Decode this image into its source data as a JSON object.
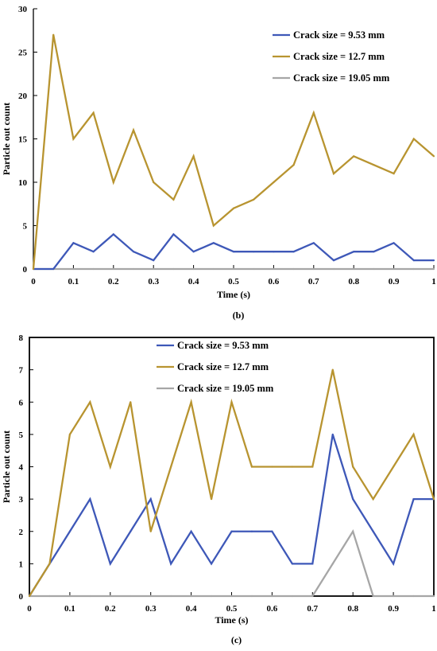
{
  "chart_data": [
    {
      "type": "line",
      "title": "",
      "caption": "(b)",
      "xlabel": "Time (s)",
      "ylabel": "Particle out count",
      "xlim": [
        0,
        1
      ],
      "ylim": [
        0,
        30
      ],
      "x_ticks": [
        0,
        0.1,
        0.2,
        0.3,
        0.4,
        0.5,
        0.6,
        0.7,
        0.8,
        0.9,
        1
      ],
      "x_tick_labels": [
        "0",
        "0.1",
        "0.2",
        "0.3",
        "0.4",
        "0.5",
        "0.6",
        "0.7",
        "0.8",
        "0.9",
        "1"
      ],
      "y_ticks": [
        0,
        5,
        10,
        15,
        20,
        25,
        30
      ],
      "y_tick_labels": [
        "0",
        "5",
        "10",
        "15",
        "20",
        "25",
        "30"
      ],
      "grid": false,
      "legend_position": "top-right",
      "x": [
        0,
        0.05,
        0.1,
        0.15,
        0.2,
        0.25,
        0.3,
        0.35,
        0.4,
        0.45,
        0.5,
        0.55,
        0.6,
        0.65,
        0.7,
        0.75,
        0.8,
        0.85,
        0.9,
        0.95,
        1
      ],
      "series": [
        {
          "name": "Crack size = 9.53 mm",
          "color": "#3e58b8",
          "values": [
            0,
            0,
            3,
            2,
            4,
            2,
            1,
            4,
            2,
            3,
            2,
            2,
            2,
            2,
            3,
            1,
            2,
            2,
            3,
            1,
            1
          ]
        },
        {
          "name": "Crack size = 12.7 mm",
          "color": "#b89430",
          "values": [
            0,
            27,
            15,
            18,
            10,
            16,
            10,
            8,
            13,
            5,
            7,
            8,
            10,
            12,
            18,
            11,
            13,
            12,
            11,
            15,
            13
          ]
        },
        {
          "name": "Crack size = 19.05 mm",
          "color": "#a6a6a6",
          "values": [
            0,
            0,
            0,
            0,
            0,
            0,
            0,
            0,
            0,
            0,
            0,
            0,
            0,
            0,
            0,
            0,
            0,
            0,
            0,
            0,
            0
          ]
        }
      ]
    },
    {
      "type": "line",
      "title": "",
      "caption": "(c)",
      "xlabel": "Time (s)",
      "ylabel": "Particle out count",
      "xlim": [
        0,
        1
      ],
      "ylim": [
        0,
        8
      ],
      "x_ticks": [
        0,
        0.1,
        0.2,
        0.3,
        0.4,
        0.5,
        0.6,
        0.7,
        0.8,
        0.9,
        1
      ],
      "x_tick_labels": [
        "0",
        "0.1",
        "0.2",
        "0.3",
        "0.4",
        "0.5",
        "0.6",
        "0.7",
        "0.8",
        "0.9",
        "1"
      ],
      "y_ticks": [
        0,
        1,
        2,
        3,
        4,
        5,
        6,
        7,
        8
      ],
      "y_tick_labels": [
        "0",
        "1",
        "2",
        "3",
        "4",
        "5",
        "6",
        "7",
        "8"
      ],
      "grid": false,
      "legend_position": "top-left",
      "x": [
        0,
        0.05,
        0.1,
        0.15,
        0.2,
        0.25,
        0.3,
        0.35,
        0.4,
        0.45,
        0.5,
        0.55,
        0.6,
        0.65,
        0.7,
        0.75,
        0.8,
        0.85,
        0.9,
        0.95,
        1
      ],
      "series": [
        {
          "name": "Crack size = 9.53 mm",
          "color": "#3e58b8",
          "values": [
            0,
            1,
            2,
            3,
            1,
            2,
            3,
            1,
            2,
            1,
            2,
            2,
            2,
            1,
            1,
            5,
            3,
            2,
            1,
            3,
            3
          ]
        },
        {
          "name": "Crack size = 12.7 mm",
          "color": "#b89430",
          "values": [
            0,
            1,
            5,
            6,
            4,
            6,
            2,
            4,
            6,
            3,
            6,
            4,
            4,
            4,
            4,
            7,
            4,
            3,
            4,
            5,
            3
          ]
        },
        {
          "name": "Crack size = 19.05 mm",
          "color": "#a6a6a6",
          "values": [
            0,
            0,
            0,
            0,
            0,
            0,
            0,
            0,
            0,
            0,
            0,
            0,
            0,
            0,
            0,
            1,
            2,
            0,
            0,
            0,
            0
          ]
        }
      ]
    }
  ]
}
